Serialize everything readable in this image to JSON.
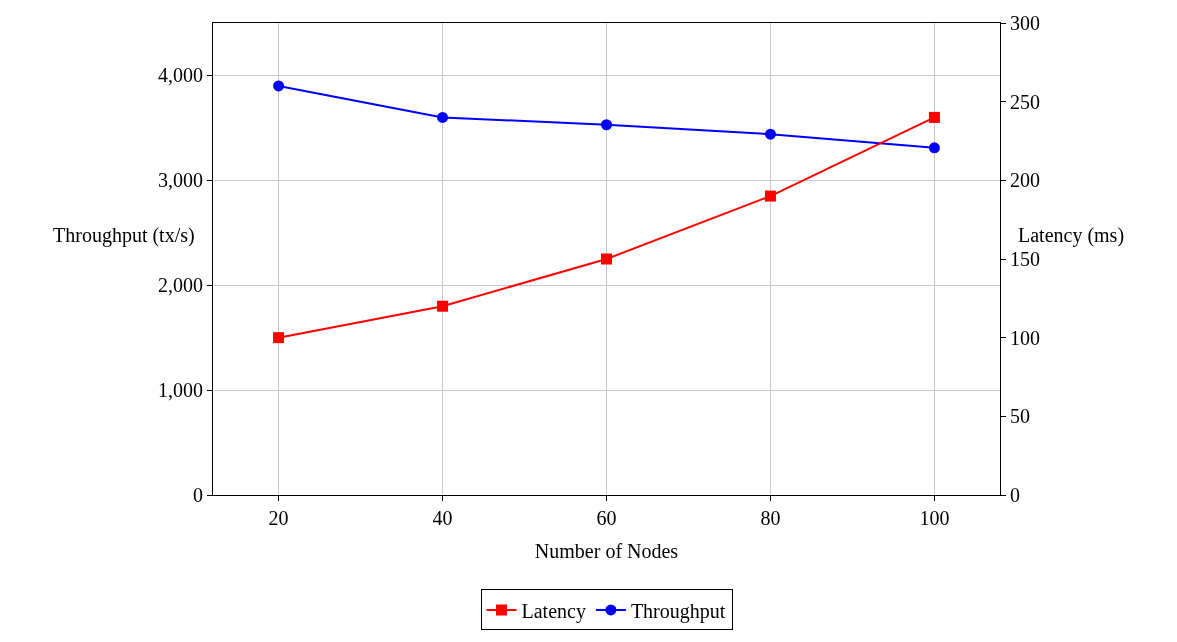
{
  "chart_data": {
    "type": "line",
    "xlabel": "Number of Nodes",
    "ylabel": "Throughput (tx/s)",
    "y2label": "Latency (ms)",
    "x": [
      20,
      40,
      60,
      80,
      100
    ],
    "series": [
      {
        "name": "Latency",
        "color": "#ff0000",
        "values": [
          100,
          120,
          150,
          190,
          240
        ],
        "axis": "y2",
        "marker": "square"
      },
      {
        "name": "Throughput",
        "color": "#0000ff",
        "values": [
          3900,
          3600,
          3530,
          3440,
          3310
        ],
        "marker": "circle"
      }
    ],
    "xlim": [
      12,
      108
    ],
    "xticks": [
      20,
      40,
      60,
      80,
      100
    ],
    "ylim": [
      0,
      4500
    ],
    "yticks": [
      0,
      {
        "value": 1000,
        "label": "1,000"
      },
      {
        "value": 2000,
        "label": "2,000"
      },
      {
        "value": 3000,
        "label": "3,000"
      },
      {
        "value": 4000,
        "label": "4,000"
      }
    ],
    "y2lim": [
      0,
      300
    ],
    "y2ticks": [
      0,
      50,
      100,
      150,
      200,
      250,
      300
    ],
    "grid": true,
    "legend": "bottom",
    "line_style": "solid"
  }
}
